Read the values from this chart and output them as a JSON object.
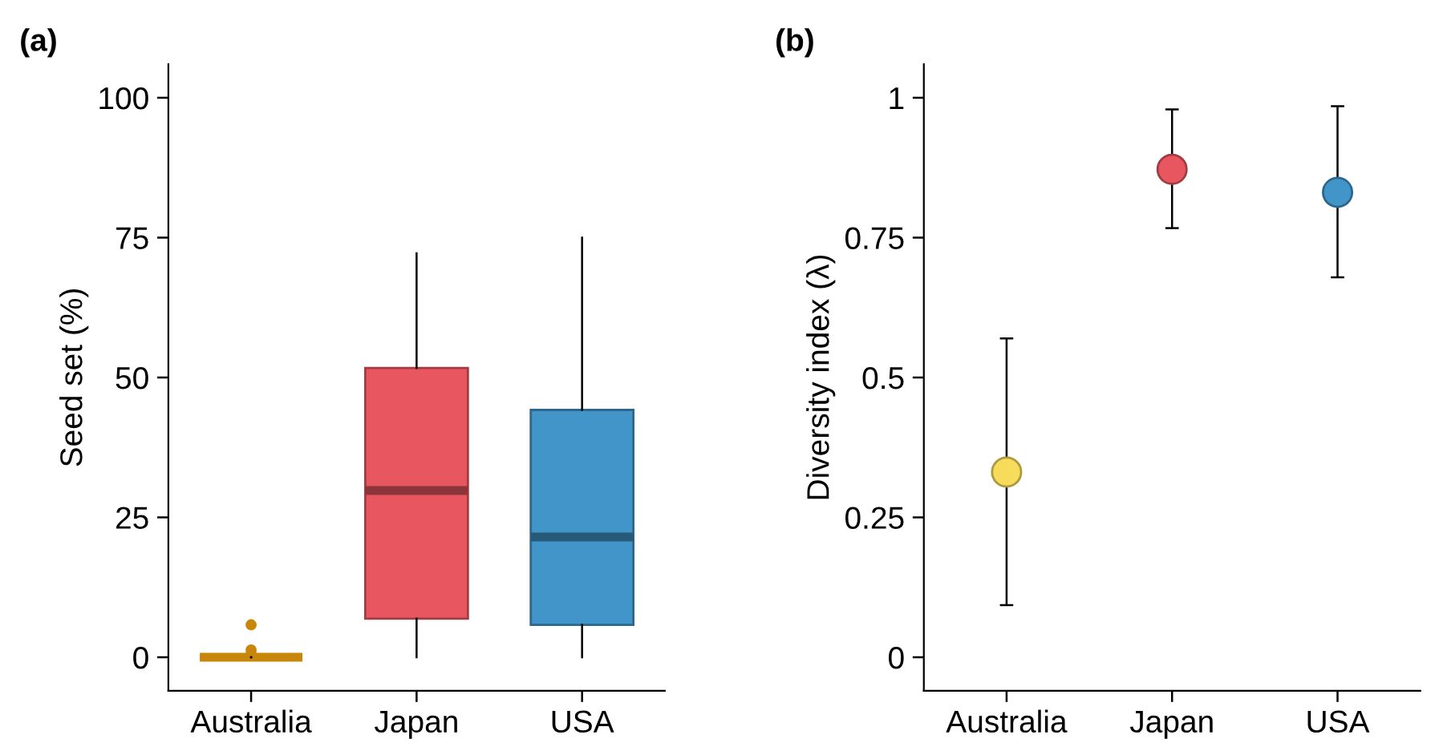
{
  "chart_data": [
    {
      "type": "box",
      "title": "(a)",
      "ylabel": "Seed set (%)",
      "categories": [
        "Australia",
        "Japan",
        "USA"
      ],
      "colors": [
        "#c8860a",
        "#e85660",
        "#4195c8"
      ],
      "boxes": [
        {
          "low": 0,
          "q1": 0,
          "median": 0,
          "q3": 0,
          "high": 0,
          "outliers": [
            5.8,
            1.3,
            0.6
          ]
        },
        {
          "low": 0,
          "q1": 6.9,
          "median": 29.8,
          "q3": 51.7,
          "high": 72.2
        },
        {
          "low": 0,
          "q1": 5.8,
          "median": 21.5,
          "q3": 44.2,
          "high": 75
        }
      ],
      "ylim": [
        -6,
        106
      ],
      "yticks": [
        0,
        25,
        50,
        75,
        100
      ],
      "grid": false
    },
    {
      "type": "scatter",
      "title": "(b)",
      "ylabel": "Diversity index (λ)",
      "categories": [
        "Australia",
        "Japan",
        "USA"
      ],
      "colors": [
        "#f7dc5c",
        "#e85660",
        "#4195c8"
      ],
      "values": [
        0.331,
        0.872,
        0.831
      ],
      "errors": [
        [
          0.093,
          0.57
        ],
        [
          0.767,
          0.979
        ],
        [
          0.679,
          0.985
        ]
      ],
      "ylim": [
        -0.06,
        1.06
      ],
      "yticks": [
        0,
        0.25,
        0.5,
        0.75,
        1
      ],
      "marker": "circle",
      "grid": false
    }
  ]
}
